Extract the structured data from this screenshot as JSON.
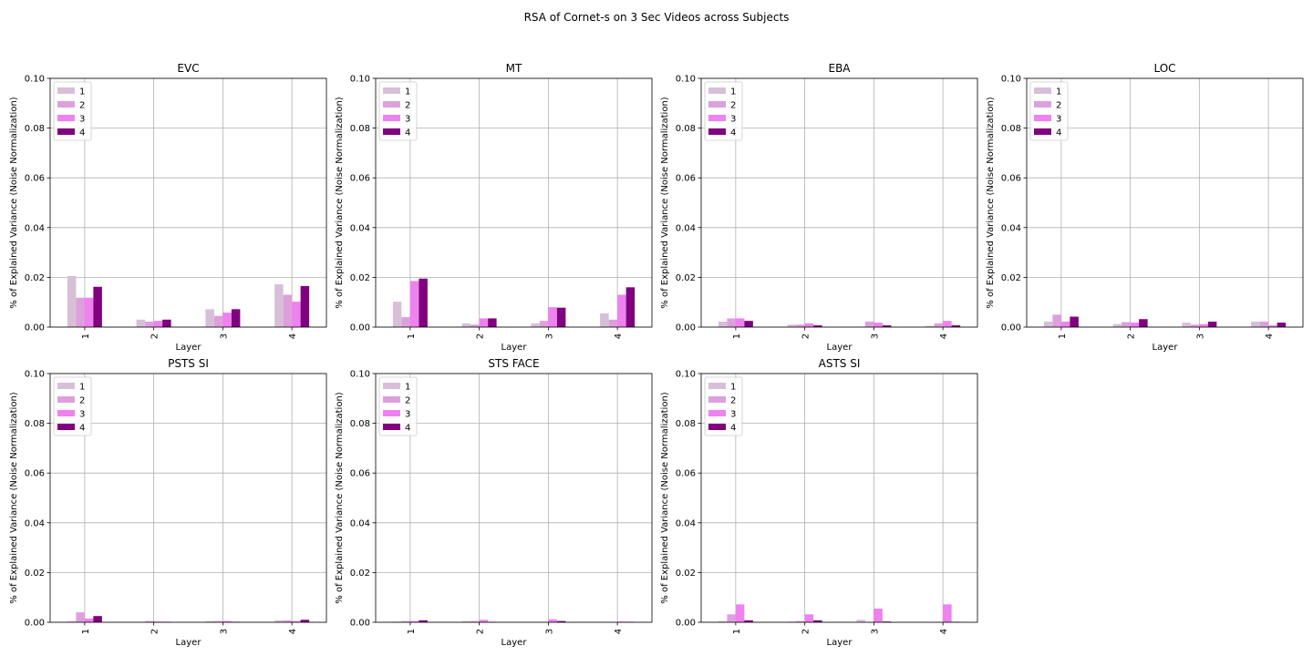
{
  "suptitle": "RSA of Cornet-s on 3 Sec Videos across Subjects",
  "colors": {
    "1": "#d8bfd8",
    "2": "#dda0dd",
    "3": "#ee82ee",
    "4": "#800080",
    "grid": "#b0b0b0"
  },
  "chart_data": [
    {
      "type": "bar",
      "title": "EVC",
      "xlabel": "Layer",
      "ylabel": "% of Explained Variance (Noise Normalization)",
      "categories": [
        "1",
        "2",
        "3",
        "4"
      ],
      "ylim": [
        0,
        0.1
      ],
      "yticks": [
        "0.00",
        "0.02",
        "0.04",
        "0.06",
        "0.08",
        "0.10"
      ],
      "grid": true,
      "legend": "upper left",
      "series": [
        {
          "name": "1",
          "values": [
            0.0205,
            0.003,
            0.0072,
            0.0172
          ]
        },
        {
          "name": "2",
          "values": [
            0.0118,
            0.0022,
            0.0045,
            0.013
          ]
        },
        {
          "name": "3",
          "values": [
            0.0118,
            0.0025,
            0.0058,
            0.0102
          ]
        },
        {
          "name": "4",
          "values": [
            0.0162,
            0.003,
            0.0072,
            0.0165
          ]
        }
      ]
    },
    {
      "type": "bar",
      "title": "MT",
      "xlabel": "Layer",
      "ylabel": "% of Explained Variance (Noise Normalization)",
      "categories": [
        "1",
        "2",
        "3",
        "4"
      ],
      "ylim": [
        0,
        0.1
      ],
      "yticks": [
        "0.00",
        "0.02",
        "0.04",
        "0.06",
        "0.08",
        "0.10"
      ],
      "grid": true,
      "legend": "upper left",
      "series": [
        {
          "name": "1",
          "values": [
            0.0102,
            0.0015,
            0.0015,
            0.0055
          ]
        },
        {
          "name": "2",
          "values": [
            0.004,
            0.001,
            0.0025,
            0.003
          ]
        },
        {
          "name": "3",
          "values": [
            0.0185,
            0.0035,
            0.008,
            0.013
          ]
        },
        {
          "name": "4",
          "values": [
            0.0195,
            0.0035,
            0.0078,
            0.016
          ]
        }
      ]
    },
    {
      "type": "bar",
      "title": "EBA",
      "xlabel": "Layer",
      "ylabel": "% of Explained Variance (Noise Normalization)",
      "categories": [
        "1",
        "2",
        "3",
        "4"
      ],
      "ylim": [
        0,
        0.1
      ],
      "yticks": [
        "0.00",
        "0.02",
        "0.04",
        "0.06",
        "0.08",
        "0.10"
      ],
      "grid": true,
      "legend": "upper left",
      "series": [
        {
          "name": "1",
          "values": [
            0.0022,
            0.001,
            0.0002,
            0.0005
          ]
        },
        {
          "name": "2",
          "values": [
            0.0035,
            0.001,
            0.0022,
            0.0015
          ]
        },
        {
          "name": "3",
          "values": [
            0.0035,
            0.0015,
            0.0018,
            0.0025
          ]
        },
        {
          "name": "4",
          "values": [
            0.0025,
            0.0007,
            0.0007,
            0.0007
          ]
        }
      ]
    },
    {
      "type": "bar",
      "title": "LOC",
      "xlabel": "Layer",
      "ylabel": "% of Explained Variance (Noise Normalization)",
      "categories": [
        "1",
        "2",
        "3",
        "4"
      ],
      "ylim": [
        0,
        0.1
      ],
      "yticks": [
        "0.00",
        "0.02",
        "0.04",
        "0.06",
        "0.08",
        "0.10"
      ],
      "grid": true,
      "legend": "upper left",
      "series": [
        {
          "name": "1",
          "values": [
            0.0022,
            0.0012,
            0.0018,
            0.0022
          ]
        },
        {
          "name": "2",
          "values": [
            0.005,
            0.002,
            0.001,
            0.0022
          ]
        },
        {
          "name": "3",
          "values": [
            0.0022,
            0.0018,
            0.0012,
            0.0007
          ]
        },
        {
          "name": "4",
          "values": [
            0.0042,
            0.0032,
            0.0022,
            0.0018
          ]
        }
      ]
    },
    {
      "type": "bar",
      "title": "PSTS SI",
      "xlabel": "Layer",
      "ylabel": "% of Explained Variance (Noise Normalization)",
      "categories": [
        "1",
        "2",
        "3",
        "4"
      ],
      "ylim": [
        0,
        0.1
      ],
      "yticks": [
        "0.00",
        "0.02",
        "0.04",
        "0.06",
        "0.08",
        "0.10"
      ],
      "grid": true,
      "legend": "upper left",
      "series": [
        {
          "name": "1",
          "values": [
            0.0005,
            0.0002,
            0.0005,
            0.0008
          ]
        },
        {
          "name": "2",
          "values": [
            0.004,
            0.0005,
            0.0005,
            0.0008
          ]
        },
        {
          "name": "3",
          "values": [
            0.0015,
            0.0003,
            0.0005,
            0.0005
          ]
        },
        {
          "name": "4",
          "values": [
            0.0025,
            0.0002,
            0.0002,
            0.001
          ]
        }
      ]
    },
    {
      "type": "bar",
      "title": "STS FACE",
      "xlabel": "Layer",
      "ylabel": "% of Explained Variance (Noise Normalization)",
      "categories": [
        "1",
        "2",
        "3",
        "4"
      ],
      "ylim": [
        0,
        0.1
      ],
      "yticks": [
        "0.00",
        "0.02",
        "0.04",
        "0.06",
        "0.08",
        "0.10"
      ],
      "grid": true,
      "legend": "upper left",
      "series": [
        {
          "name": "1",
          "values": [
            0.0003,
            0.0005,
            0.0002,
            0.0002
          ]
        },
        {
          "name": "2",
          "values": [
            0.0005,
            0.0005,
            0.0002,
            0.0002
          ]
        },
        {
          "name": "3",
          "values": [
            0.0005,
            0.001,
            0.0012,
            0.0003
          ]
        },
        {
          "name": "4",
          "values": [
            0.0008,
            0.0002,
            0.0005,
            0.0002
          ]
        }
      ]
    },
    {
      "type": "bar",
      "title": "ASTS SI",
      "xlabel": "Layer",
      "ylabel": "% of Explained Variance (Noise Normalization)",
      "categories": [
        "1",
        "2",
        "3",
        "4"
      ],
      "ylim": [
        0,
        0.1
      ],
      "yticks": [
        "0.00",
        "0.02",
        "0.04",
        "0.06",
        "0.08",
        "0.10"
      ],
      "grid": true,
      "legend": "upper left",
      "series": [
        {
          "name": "1",
          "values": [
            0.0005,
            0.0003,
            0.001,
            0.0002
          ]
        },
        {
          "name": "2",
          "values": [
            0.0032,
            0.0005,
            0.0002,
            0.0002
          ]
        },
        {
          "name": "3",
          "values": [
            0.0072,
            0.0032,
            0.0055,
            0.0072
          ]
        },
        {
          "name": "4",
          "values": [
            0.0008,
            0.0008,
            0.0003,
            0.0002
          ]
        }
      ]
    }
  ]
}
